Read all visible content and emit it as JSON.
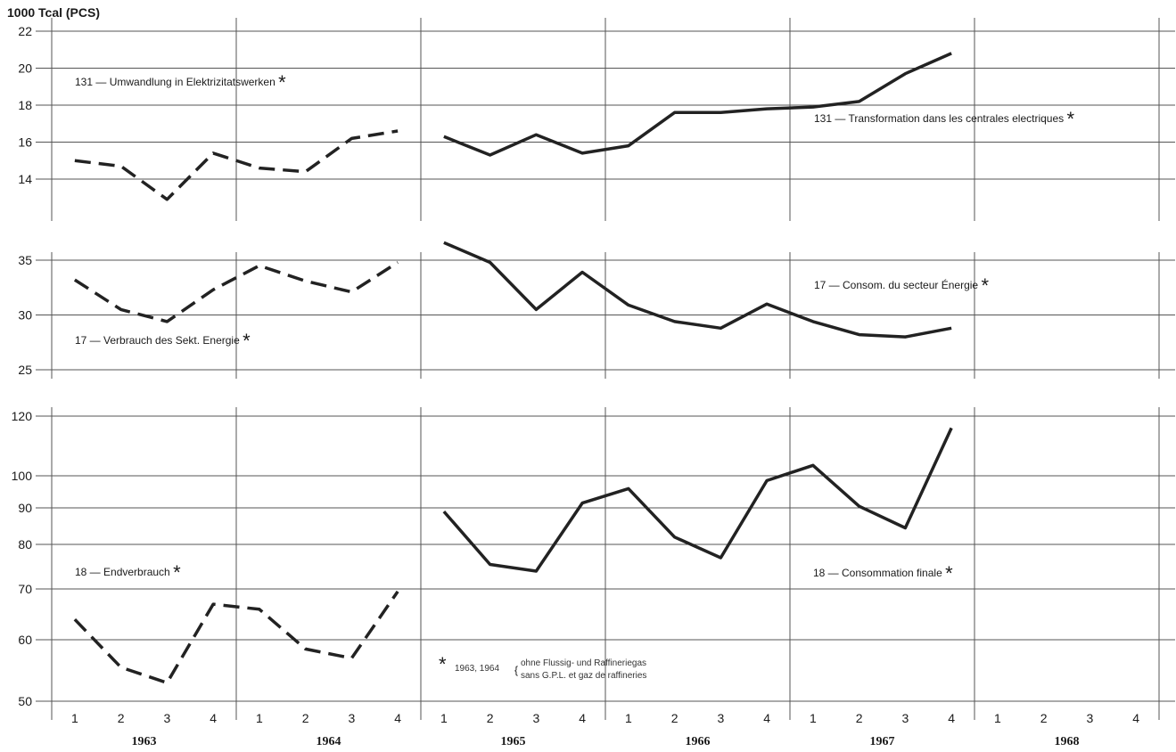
{
  "unit_label": "1000 Tcal (PCS)",
  "colors": {
    "line": "#222222",
    "grid": "#555555"
  },
  "chart_data": [
    {
      "type": "line",
      "panel": "top",
      "ylim": [
        12,
        22
      ],
      "yticks": [
        14,
        16,
        18,
        20,
        22
      ],
      "categories": [
        "1963 Q1",
        "1963 Q2",
        "1963 Q3",
        "1963 Q4",
        "1964 Q1",
        "1964 Q2",
        "1964 Q3",
        "1964 Q4",
        "1965 Q1",
        "1965 Q2",
        "1965 Q3",
        "1965 Q4",
        "1966 Q1",
        "1966 Q2",
        "1966 Q3",
        "1966 Q4",
        "1967 Q1",
        "1967 Q2",
        "1967 Q3",
        "1967 Q4"
      ],
      "series": [
        {
          "style": "dashed",
          "values": [
            15.0,
            14.7,
            12.9,
            15.4,
            14.6,
            14.4,
            16.2,
            16.6,
            null,
            null,
            null,
            null,
            null,
            null,
            null,
            null,
            null,
            null,
            null,
            null
          ]
        },
        {
          "style": "solid",
          "values": [
            null,
            null,
            null,
            null,
            null,
            null,
            null,
            null,
            16.3,
            15.3,
            16.4,
            15.4,
            15.8,
            17.6,
            17.6,
            17.8,
            17.9,
            18.2,
            19.7,
            20.8
          ]
        }
      ],
      "label_left": {
        "code": "131",
        "text": "Umwandlung in Elektrizitatswerken"
      },
      "label_right": {
        "code": "131",
        "text": "Transformation dans les centrales electriques"
      }
    },
    {
      "type": "line",
      "panel": "middle",
      "ylim": [
        25,
        37
      ],
      "yticks": [
        25,
        30,
        35
      ],
      "categories": [
        "1963 Q1",
        "1963 Q2",
        "1963 Q3",
        "1963 Q4",
        "1964 Q1",
        "1964 Q2",
        "1964 Q3",
        "1964 Q4",
        "1965 Q1",
        "1965 Q2",
        "1965 Q3",
        "1965 Q4",
        "1966 Q1",
        "1966 Q2",
        "1966 Q3",
        "1966 Q4",
        "1967 Q1",
        "1967 Q2",
        "1967 Q3",
        "1967 Q4"
      ],
      "series": [
        {
          "style": "dashed",
          "values": [
            33.2,
            30.5,
            29.4,
            32.3,
            34.5,
            33.1,
            32.1,
            34.8,
            null,
            null,
            null,
            null,
            null,
            null,
            null,
            null,
            null,
            null,
            null,
            null
          ]
        },
        {
          "style": "solid",
          "values": [
            null,
            null,
            null,
            null,
            null,
            null,
            null,
            null,
            36.6,
            34.8,
            30.5,
            33.9,
            30.9,
            29.4,
            28.8,
            31.0,
            29.4,
            28.2,
            28.0,
            28.8
          ]
        }
      ],
      "label_left": {
        "code": "17",
        "text": "Verbrauch des Sekt. Energie"
      },
      "label_right": {
        "code": "17",
        "text": "Consom. du secteur Énergie"
      }
    },
    {
      "type": "line",
      "panel": "bottom",
      "ylim": [
        50,
        120
      ],
      "yticks": [
        50,
        60,
        70,
        80,
        90,
        100,
        120
      ],
      "categories": [
        "1963 Q1",
        "1963 Q2",
        "1963 Q3",
        "1963 Q4",
        "1964 Q1",
        "1964 Q2",
        "1964 Q3",
        "1964 Q4",
        "1965 Q1",
        "1965 Q2",
        "1965 Q3",
        "1965 Q4",
        "1966 Q1",
        "1966 Q2",
        "1966 Q3",
        "1966 Q4",
        "1967 Q1",
        "1967 Q2",
        "1967 Q3",
        "1967 Q4"
      ],
      "series": [
        {
          "style": "dashed",
          "values": [
            64.0,
            55.5,
            53.0,
            67.0,
            66.0,
            58.5,
            57.0,
            69.5,
            null,
            null,
            null,
            null,
            null,
            null,
            null,
            null,
            null,
            null,
            null,
            null
          ]
        },
        {
          "style": "solid",
          "values": [
            null,
            null,
            null,
            null,
            null,
            null,
            null,
            null,
            89.0,
            75.5,
            74.0,
            91.5,
            96.0,
            82.0,
            77.0,
            98.5,
            103.5,
            90.5,
            84.5,
            116.0
          ]
        }
      ],
      "label_left": {
        "code": "18",
        "text": "Endverbrauch"
      },
      "label_right": {
        "code": "18",
        "text": "Consommation finale"
      }
    }
  ],
  "x_axis": {
    "quarters": [
      "1",
      "2",
      "3",
      "4"
    ],
    "years": [
      "1963",
      "1964",
      "1965",
      "1966",
      "1967",
      "1968"
    ]
  },
  "footnote": {
    "star": "*",
    "years": "1963, 1964",
    "line_de": "ohne Flussig- und Raffineriegas",
    "line_fr": "sans G.P.L. et gaz de raffineries"
  }
}
